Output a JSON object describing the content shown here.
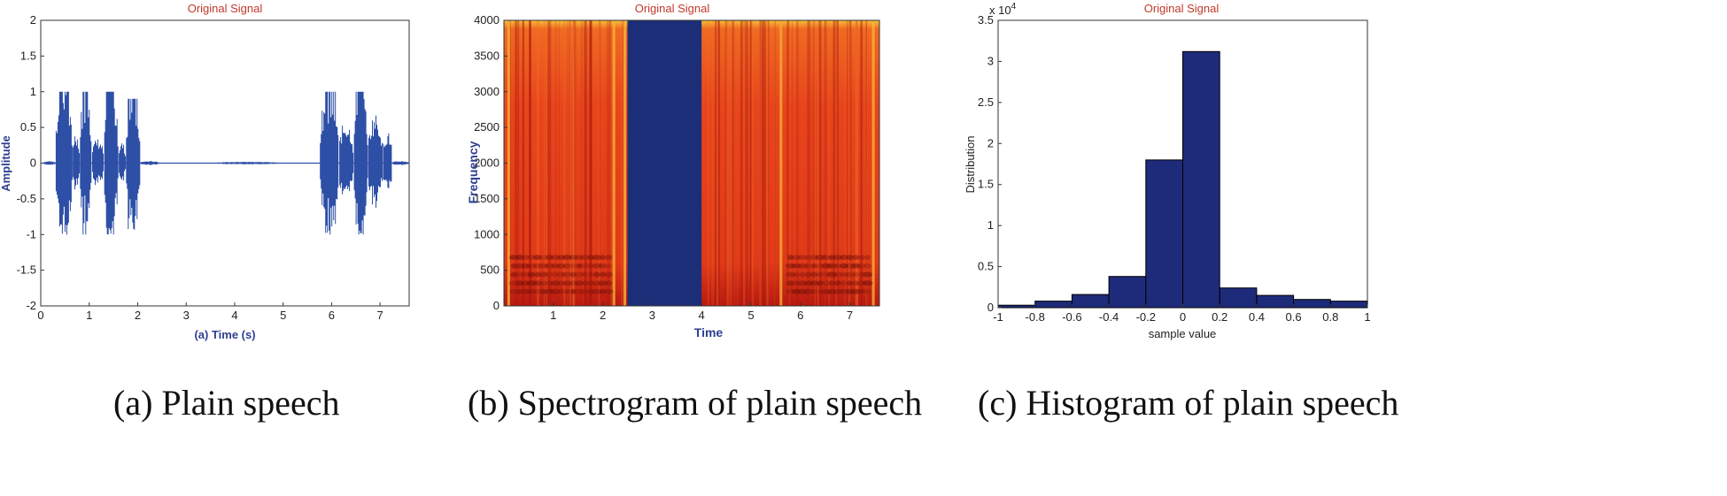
{
  "chart_data": [
    {
      "type": "line",
      "title": "Original Signal",
      "xlabel": "(a) Time (s)",
      "ylabel": "Amplitude",
      "xlim": [
        0,
        7.6
      ],
      "ylim": [
        -2,
        2
      ],
      "xticks": [
        0,
        1,
        2,
        3,
        4,
        5,
        6,
        7
      ],
      "yticks": [
        -2,
        -1.5,
        -1,
        -0.5,
        0,
        0.5,
        1,
        1.5,
        2
      ],
      "ytick_labels": [
        "-2",
        "-1.5",
        "-1",
        "-0.5",
        "0",
        "0.5",
        "1",
        "1.5",
        "2"
      ],
      "series_color": "#2e4fa6",
      "envelope_segments": [
        {
          "x": [
            0.05,
            0.3
          ],
          "peak": 0.03
        },
        {
          "x": [
            0.3,
            0.65
          ],
          "peak": 1.0
        },
        {
          "x": [
            0.65,
            0.8
          ],
          "peak": 0.45
        },
        {
          "x": [
            0.8,
            1.05
          ],
          "peak": 1.0
        },
        {
          "x": [
            1.05,
            1.3
          ],
          "peak": 0.35
        },
        {
          "x": [
            1.3,
            1.6
          ],
          "peak": 1.0
        },
        {
          "x": [
            1.6,
            1.75
          ],
          "peak": 0.3
        },
        {
          "x": [
            1.75,
            2.05
          ],
          "peak": 0.9
        },
        {
          "x": [
            2.05,
            2.45
          ],
          "peak": 0.03
        },
        {
          "x": [
            2.45,
            3.6
          ],
          "peak": 0.0
        },
        {
          "x": [
            3.6,
            4.9
          ],
          "peak": 0.02
        },
        {
          "x": [
            4.9,
            5.75
          ],
          "peak": 0.0
        },
        {
          "x": [
            5.75,
            6.15
          ],
          "peak": 1.0
        },
        {
          "x": [
            6.15,
            6.45
          ],
          "peak": 0.6
        },
        {
          "x": [
            6.45,
            6.75
          ],
          "peak": 1.0
        },
        {
          "x": [
            6.75,
            7.05
          ],
          "peak": 0.7
        },
        {
          "x": [
            7.05,
            7.25
          ],
          "peak": 0.45
        },
        {
          "x": [
            7.25,
            7.6
          ],
          "peak": 0.03
        }
      ]
    },
    {
      "type": "heatmap",
      "title": "Original Signal",
      "xlabel": "Time",
      "ylabel": "Frequency",
      "xlim": [
        0,
        7.6
      ],
      "ylim": [
        0,
        4000
      ],
      "xticks": [
        1,
        2,
        3,
        4,
        5,
        6,
        7
      ],
      "yticks": [
        0,
        500,
        1000,
        1500,
        2000,
        2500,
        3000,
        3500,
        4000
      ],
      "silent_band": [
        2.5,
        4.0
      ],
      "speech_color": "#e03a18",
      "silence_color": "#1c2e78"
    },
    {
      "type": "bar",
      "title": "Original Signal",
      "xlabel": "sample value",
      "ylabel": "Distribution",
      "exponent_label": "x 10",
      "exponent": "4",
      "xlim": [
        -1,
        1
      ],
      "ylim": [
        0,
        3.5
      ],
      "xticks": [
        -1,
        -0.8,
        -0.6,
        -0.4,
        -0.2,
        0,
        0.2,
        0.4,
        0.6,
        0.8,
        1
      ],
      "yticks": [
        0,
        0.5,
        1,
        1.5,
        2,
        2.5,
        3,
        3.5
      ],
      "ytick_labels": [
        "0",
        "0.5",
        "1",
        "1.5",
        "2",
        "2.5",
        "3",
        "3.5"
      ],
      "bin_edges": [
        -1,
        -0.8,
        -0.6,
        -0.4,
        -0.2,
        0,
        0.2,
        0.4,
        0.6,
        0.8,
        1
      ],
      "values": [
        0.03,
        0.08,
        0.16,
        0.38,
        1.8,
        3.12,
        0.24,
        0.15,
        0.1,
        0.08
      ],
      "bar_color": "#1e2b7a"
    }
  ],
  "captions": {
    "a": "(a) Plain speech",
    "b": "(b) Spectrogram of plain speech",
    "c": "(c) Histogram of plain speech"
  }
}
